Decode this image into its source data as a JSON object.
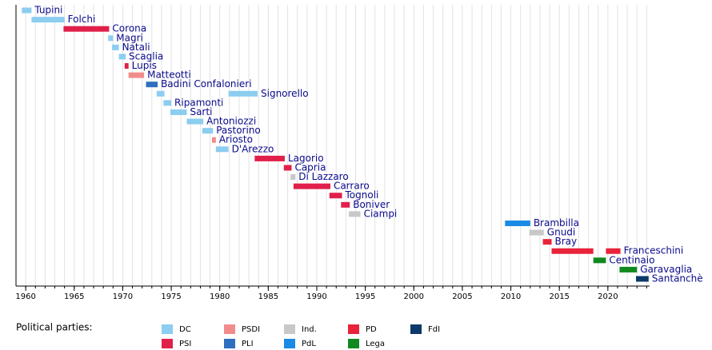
{
  "chart_data": {
    "type": "timeline",
    "xlim": [
      1959,
      2024.3
    ],
    "xticks": [
      1960,
      1965,
      1970,
      1975,
      1980,
      1985,
      1990,
      1995,
      2000,
      2005,
      2010,
      2015,
      2020
    ],
    "xminor": [
      1960,
      1961,
      1962,
      1963,
      1964,
      1965,
      1966,
      1967,
      1968,
      1969,
      1970,
      1971,
      1972,
      1973,
      1974,
      1975,
      1976,
      1977,
      1978,
      1979,
      1980,
      1981,
      1982,
      1983,
      1984,
      1985,
      1986,
      1987,
      1988,
      1989,
      1990,
      1991,
      1992,
      1993,
      1994,
      1995,
      1996,
      1997,
      1998,
      1999,
      2000,
      2001,
      2002,
      2003,
      2004,
      2005,
      2006,
      2007,
      2008,
      2009,
      2010,
      2011,
      2012,
      2013,
      2014,
      2015,
      2016,
      2017,
      2018,
      2019,
      2020,
      2021,
      2022,
      2023,
      2024
    ],
    "grid": true,
    "legend_title": "Political parties:",
    "parties": [
      {
        "name": "DC",
        "color": "#8ccdf0"
      },
      {
        "name": "PSI",
        "color": "#e0204a"
      },
      {
        "name": "PSDI",
        "color": "#f28c8c"
      },
      {
        "name": "PLI",
        "color": "#2f6fc0"
      },
      {
        "name": "Ind.",
        "color": "#c8c8c8"
      },
      {
        "name": "PdL",
        "color": "#1a8ae5"
      },
      {
        "name": "PD",
        "color": "#e8233a"
      },
      {
        "name": "Lega",
        "color": "#108a20"
      },
      {
        "name": "FdI",
        "color": "#0b3a6a"
      }
    ],
    "rows": [
      {
        "label": "Tupini",
        "party": 0,
        "periods": [
          [
            1959.6,
            1960.6
          ]
        ]
      },
      {
        "label": "Folchi",
        "party": 0,
        "periods": [
          [
            1960.6,
            1964.0
          ]
        ]
      },
      {
        "label": "Corona",
        "party": 1,
        "periods": [
          [
            1963.9,
            1968.6
          ]
        ]
      },
      {
        "label": "Magri",
        "party": 0,
        "periods": [
          [
            1968.5,
            1969.0
          ]
        ]
      },
      {
        "label": "Natali",
        "party": 0,
        "periods": [
          [
            1968.9,
            1969.6
          ]
        ]
      },
      {
        "label": "Scaglia",
        "party": 0,
        "periods": [
          [
            1969.6,
            1970.3
          ]
        ]
      },
      {
        "label": "Lupis",
        "party": 1,
        "periods": [
          [
            1970.2,
            1970.6
          ]
        ]
      },
      {
        "label": "Matteotti",
        "party": 2,
        "periods": [
          [
            1970.6,
            1972.2
          ]
        ]
      },
      {
        "label": "Badini Confalonieri",
        "party": 3,
        "periods": [
          [
            1972.4,
            1973.6
          ]
        ]
      },
      {
        "label": "Signorello",
        "party": 0,
        "periods": [
          [
            1973.5,
            1974.3
          ],
          [
            1980.9,
            1983.9
          ]
        ]
      },
      {
        "label": "Ripamonti",
        "party": 0,
        "periods": [
          [
            1974.2,
            1975.0
          ]
        ]
      },
      {
        "label": "Sarti",
        "party": 0,
        "periods": [
          [
            1974.9,
            1976.6
          ]
        ]
      },
      {
        "label": "Antoniozzi",
        "party": 0,
        "periods": [
          [
            1976.6,
            1978.3
          ]
        ]
      },
      {
        "label": "Pastorino",
        "party": 0,
        "periods": [
          [
            1978.2,
            1979.3
          ]
        ]
      },
      {
        "label": "Ariosto",
        "party": 2,
        "periods": [
          [
            1979.2,
            1979.6
          ]
        ]
      },
      {
        "label": "D'Arezzo",
        "party": 0,
        "periods": [
          [
            1979.6,
            1980.9
          ]
        ]
      },
      {
        "label": "Lagorio",
        "party": 1,
        "periods": [
          [
            1983.6,
            1986.7
          ]
        ]
      },
      {
        "label": "Capria",
        "party": 1,
        "periods": [
          [
            1986.6,
            1987.4
          ]
        ]
      },
      {
        "label": "Di Lazzaro",
        "party": 4,
        "periods": [
          [
            1987.3,
            1987.8
          ]
        ]
      },
      {
        "label": "Carraro",
        "party": 1,
        "periods": [
          [
            1987.6,
            1991.4
          ]
        ]
      },
      {
        "label": "Tognoli",
        "party": 1,
        "periods": [
          [
            1991.3,
            1992.6
          ]
        ]
      },
      {
        "label": "Boniver",
        "party": 1,
        "periods": [
          [
            1992.5,
            1993.4
          ]
        ]
      },
      {
        "label": "Ciampi",
        "party": 4,
        "periods": [
          [
            1993.3,
            1994.5
          ]
        ]
      },
      {
        "label": "Brambilla",
        "party": 5,
        "periods": [
          [
            2009.4,
            2012.0
          ]
        ]
      },
      {
        "label": "Gnudi",
        "party": 4,
        "periods": [
          [
            2011.9,
            2013.4
          ]
        ]
      },
      {
        "label": "Bray",
        "party": 6,
        "periods": [
          [
            2013.3,
            2014.2
          ]
        ]
      },
      {
        "label": "Franceschini",
        "party": 6,
        "periods": [
          [
            2014.2,
            2018.5
          ],
          [
            2019.8,
            2021.3
          ]
        ]
      },
      {
        "label": "Centinaio",
        "party": 7,
        "periods": [
          [
            2018.5,
            2019.8
          ]
        ]
      },
      {
        "label": "Garavaglia",
        "party": 7,
        "periods": [
          [
            2021.2,
            2023.0
          ]
        ]
      },
      {
        "label": "Santanchè",
        "party": 8,
        "periods": [
          [
            2022.9,
            2024.2
          ]
        ]
      }
    ]
  }
}
